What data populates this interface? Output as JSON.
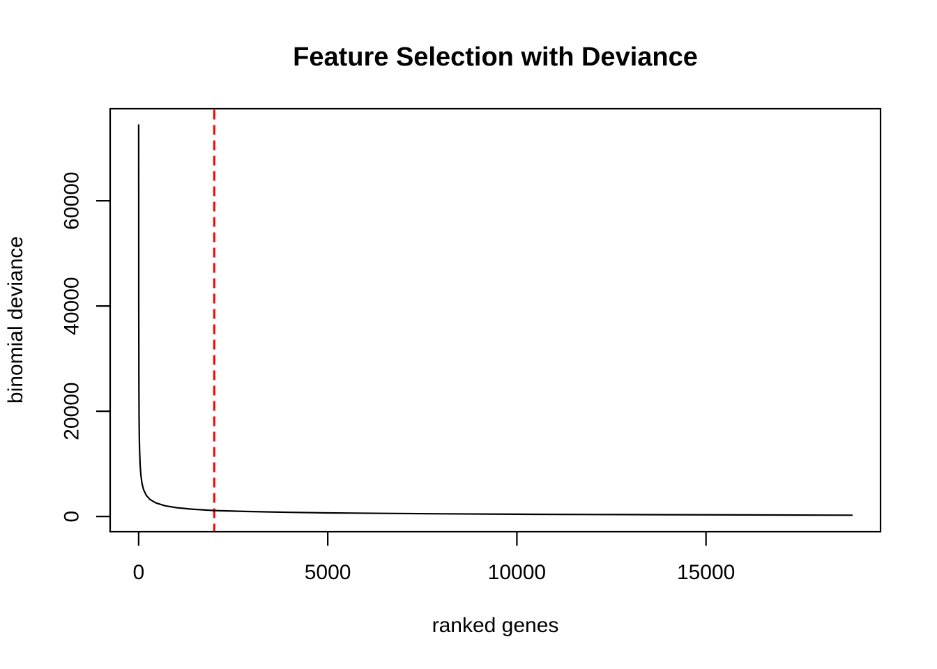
{
  "chart_data": {
    "type": "line",
    "title": "Feature Selection with Deviance",
    "xlabel": "ranked genes",
    "ylabel": "binomial deviance",
    "x_ticks": [
      0,
      5000,
      10000,
      15000
    ],
    "y_ticks": [
      0,
      20000,
      40000,
      60000
    ],
    "x_tick_labels": [
      "0",
      "5000",
      "10000",
      "15000"
    ],
    "y_tick_labels": [
      "0",
      "20000",
      "40000",
      "60000"
    ],
    "xlim": [
      -753,
      19614
    ],
    "ylim": [
      -2900,
      77500
    ],
    "grid": false,
    "legend": false,
    "background_color": "#FFFFFF",
    "axis_color": "#000000",
    "series": [
      {
        "name": "deviance-vs-rank",
        "color": "#000000",
        "line_style": "solid",
        "points": [
          [
            1,
            74400
          ],
          [
            2,
            50800
          ],
          [
            3,
            40700
          ],
          [
            4,
            34700
          ],
          [
            6,
            27800
          ],
          [
            8,
            23700
          ],
          [
            12,
            19000
          ],
          [
            18,
            15200
          ],
          [
            25,
            12700
          ],
          [
            40,
            9800
          ],
          [
            60,
            7840
          ],
          [
            90,
            6260
          ],
          [
            130,
            5110
          ],
          [
            200,
            4030
          ],
          [
            300,
            3230
          ],
          [
            450,
            2580
          ],
          [
            700,
            2030
          ],
          [
            1000,
            1670
          ],
          [
            1400,
            1390
          ],
          [
            2000,
            1130
          ],
          [
            2800,
            950
          ],
          [
            4000,
            780
          ],
          [
            5000,
            680
          ],
          [
            6500,
            580
          ],
          [
            8000,
            500
          ],
          [
            10000,
            430
          ],
          [
            12000,
            375
          ],
          [
            14000,
            330
          ],
          [
            16000,
            290
          ],
          [
            18000,
            255
          ],
          [
            18860,
            240
          ]
        ]
      }
    ],
    "annotations": [
      {
        "name": "gene-cutoff-line",
        "type": "vline",
        "x": 2000,
        "color": "#FF0000",
        "line_style": "dashed"
      }
    ]
  }
}
